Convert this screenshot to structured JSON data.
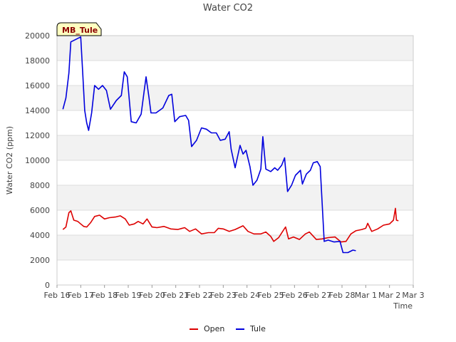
{
  "chart_data": {
    "type": "line",
    "title": "Water CO2",
    "xlabel": "Time",
    "ylabel": "Water CO2 (ppm)",
    "ylim": [
      0,
      20000
    ],
    "yticks": [
      0,
      2000,
      4000,
      6000,
      8000,
      10000,
      12000,
      14000,
      16000,
      18000,
      20000
    ],
    "xlim_days": [
      "Feb 16",
      "Mar 3"
    ],
    "xtick_labels": [
      "Feb 16",
      "Feb 17",
      "Feb 18",
      "Feb 19",
      "Feb 20",
      "Feb 21",
      "Feb 22",
      "Feb 23",
      "Feb 24",
      "Feb 25",
      "Feb 26",
      "Feb 27",
      "Feb 28",
      "Mar 1",
      "Mar 2",
      "Mar 3"
    ],
    "grid": true,
    "legend": "bottom-center",
    "annotation": "MB_Tule",
    "series": [
      {
        "name": "Open",
        "color": "#dd0000",
        "points": [
          [
            "Feb 16 06:00",
            4450
          ],
          [
            "Feb 16 09:00",
            4650
          ],
          [
            "Feb 16 12:00",
            5800
          ],
          [
            "Feb 16 14:00",
            5950
          ],
          [
            "Feb 16 17:00",
            5200
          ],
          [
            "Feb 16 21:00",
            5100
          ],
          [
            "Feb 17 00:00",
            4900
          ],
          [
            "Feb 17 03:00",
            4700
          ],
          [
            "Feb 17 06:00",
            4650
          ],
          [
            "Feb 17 10:00",
            5000
          ],
          [
            "Feb 17 14:00",
            5500
          ],
          [
            "Feb 17 19:00",
            5600
          ],
          [
            "Feb 18 00:00",
            5300
          ],
          [
            "Feb 18 05:00",
            5400
          ],
          [
            "Feb 18 11:00",
            5450
          ],
          [
            "Feb 18 16:00",
            5550
          ],
          [
            "Feb 18 21:00",
            5300
          ],
          [
            "Feb 19 01:00",
            4800
          ],
          [
            "Feb 19 06:00",
            4900
          ],
          [
            "Feb 19 10:00",
            5100
          ],
          [
            "Feb 19 15:00",
            4900
          ],
          [
            "Feb 19 19:00",
            5300
          ],
          [
            "Feb 20 00:00",
            4650
          ],
          [
            "Feb 20 05:00",
            4600
          ],
          [
            "Feb 20 12:00",
            4700
          ],
          [
            "Feb 20 19:00",
            4500
          ],
          [
            "Feb 21 02:00",
            4450
          ],
          [
            "Feb 21 09:00",
            4600
          ],
          [
            "Feb 21 14:00",
            4300
          ],
          [
            "Feb 21 20:00",
            4500
          ],
          [
            "Feb 22 02:00",
            4100
          ],
          [
            "Feb 22 09:00",
            4200
          ],
          [
            "Feb 22 15:00",
            4200
          ],
          [
            "Feb 22 19:00",
            4550
          ],
          [
            "Feb 23 00:00",
            4500
          ],
          [
            "Feb 23 06:00",
            4300
          ],
          [
            "Feb 23 12:00",
            4450
          ],
          [
            "Feb 23 20:00",
            4750
          ],
          [
            "Feb 24 01:00",
            4300
          ],
          [
            "Feb 24 07:00",
            4100
          ],
          [
            "Feb 24 14:00",
            4100
          ],
          [
            "Feb 24 19:00",
            4250
          ],
          [
            "Feb 25 00:00",
            3900
          ],
          [
            "Feb 25 03:00",
            3500
          ],
          [
            "Feb 25 08:00",
            3800
          ],
          [
            "Feb 25 12:00",
            4300
          ],
          [
            "Feb 25 15:00",
            4650
          ],
          [
            "Feb 25 18:00",
            3700
          ],
          [
            "Feb 25 23:00",
            3850
          ],
          [
            "Feb 26 05:00",
            3650
          ],
          [
            "Feb 26 11:00",
            4100
          ],
          [
            "Feb 26 15:00",
            4250
          ],
          [
            "Feb 26 22:00",
            3650
          ],
          [
            "Feb 27 04:00",
            3700
          ],
          [
            "Feb 27 10:00",
            3800
          ],
          [
            "Feb 27 17:00",
            3850
          ],
          [
            "Feb 27 23:00",
            3450
          ],
          [
            "Feb 28 04:00",
            3500
          ],
          [
            "Feb 28 09:00",
            4100
          ],
          [
            "Feb 28 14:00",
            4350
          ],
          [
            "Feb 28 20:00",
            4450
          ],
          [
            "Mar 1 00:00",
            4550
          ],
          [
            "Mar 1 02:00",
            4950
          ],
          [
            "Mar 1 06:00",
            4300
          ],
          [
            "Mar 1 12:00",
            4500
          ],
          [
            "Mar 1 18:00",
            4800
          ],
          [
            "Mar 2 00:00",
            4900
          ],
          [
            "Mar 2 04:00",
            5200
          ],
          [
            "Mar 2 06:00",
            6150
          ],
          [
            "Mar 2 07:00",
            5200
          ],
          [
            "Mar 2 09:00",
            5150
          ]
        ]
      },
      {
        "name": "Tule",
        "color": "#0000dd",
        "points": [
          [
            "Feb 16 06:00",
            14100
          ],
          [
            "Feb 16 09:00",
            15000
          ],
          [
            "Feb 16 12:00",
            17000
          ],
          [
            "Feb 16 14:00",
            19500
          ],
          [
            "Feb 16 19:00",
            19700
          ],
          [
            "Feb 17 00:00",
            19900
          ],
          [
            "Feb 17 02:00",
            17000
          ],
          [
            "Feb 17 04:00",
            14000
          ],
          [
            "Feb 17 06:00",
            13000
          ],
          [
            "Feb 17 08:00",
            12400
          ],
          [
            "Feb 17 11:00",
            13800
          ],
          [
            "Feb 17 14:00",
            16000
          ],
          [
            "Feb 17 18:00",
            15700
          ],
          [
            "Feb 17 22:00",
            16000
          ],
          [
            "Feb 18 02:00",
            15600
          ],
          [
            "Feb 18 06:00",
            14100
          ],
          [
            "Feb 18 12:00",
            14800
          ],
          [
            "Feb 18 17:00",
            15200
          ],
          [
            "Feb 18 20:00",
            17100
          ],
          [
            "Feb 18 23:00",
            16700
          ],
          [
            "Feb 19 03:00",
            13100
          ],
          [
            "Feb 19 08:00",
            13000
          ],
          [
            "Feb 19 13:00",
            13700
          ],
          [
            "Feb 19 16:00",
            15500
          ],
          [
            "Feb 19 18:00",
            16700
          ],
          [
            "Feb 19 21:00",
            15000
          ],
          [
            "Feb 19 23:00",
            13800
          ],
          [
            "Feb 20 04:00",
            13800
          ],
          [
            "Feb 20 11:00",
            14200
          ],
          [
            "Feb 20 17:00",
            15200
          ],
          [
            "Feb 20 20:00",
            15300
          ],
          [
            "Feb 20 23:00",
            13100
          ],
          [
            "Feb 21 04:00",
            13500
          ],
          [
            "Feb 21 10:00",
            13600
          ],
          [
            "Feb 21 13:00",
            13200
          ],
          [
            "Feb 21 16:00",
            11100
          ],
          [
            "Feb 21 21:00",
            11600
          ],
          [
            "Feb 22 02:00",
            12600
          ],
          [
            "Feb 22 07:00",
            12500
          ],
          [
            "Feb 22 12:00",
            12200
          ],
          [
            "Feb 22 17:00",
            12200
          ],
          [
            "Feb 22 21:00",
            11600
          ],
          [
            "Feb 23 02:00",
            11700
          ],
          [
            "Feb 23 06:00",
            12300
          ],
          [
            "Feb 23 08:00",
            10900
          ],
          [
            "Feb 23 12:00",
            9400
          ],
          [
            "Feb 23 17:00",
            11200
          ],
          [
            "Feb 23 20:00",
            10500
          ],
          [
            "Feb 23 23:00",
            10800
          ],
          [
            "Feb 24 03:00",
            9500
          ],
          [
            "Feb 24 06:00",
            8000
          ],
          [
            "Feb 24 10:00",
            8400
          ],
          [
            "Feb 24 14:00",
            9300
          ],
          [
            "Feb 24 16:00",
            11900
          ],
          [
            "Feb 24 19:00",
            9300
          ],
          [
            "Feb 25 00:00",
            9100
          ],
          [
            "Feb 25 04:00",
            9400
          ],
          [
            "Feb 25 07:00",
            9200
          ],
          [
            "Feb 25 11:00",
            9600
          ],
          [
            "Feb 25 14:00",
            10200
          ],
          [
            "Feb 25 17:00",
            7500
          ],
          [
            "Feb 25 21:00",
            8000
          ],
          [
            "Feb 26 01:00",
            8800
          ],
          [
            "Feb 26 06:00",
            9200
          ],
          [
            "Feb 26 08:00",
            8100
          ],
          [
            "Feb 26 12:00",
            8900
          ],
          [
            "Feb 26 16:00",
            9200
          ],
          [
            "Feb 26 19:00",
            9800
          ],
          [
            "Feb 26 23:00",
            9900
          ],
          [
            "Feb 27 02:00",
            9500
          ],
          [
            "Feb 27 05:00",
            5000
          ],
          [
            "Feb 27 06:00",
            3500
          ],
          [
            "Feb 27 10:00",
            3600
          ],
          [
            "Feb 27 16:00",
            3450
          ],
          [
            "Feb 27 22:00",
            3500
          ],
          [
            "Feb 28 01:00",
            2600
          ],
          [
            "Feb 28 06:00",
            2600
          ],
          [
            "Feb 28 11:00",
            2800
          ],
          [
            "Feb 28 14:00",
            2750
          ]
        ]
      }
    ]
  }
}
